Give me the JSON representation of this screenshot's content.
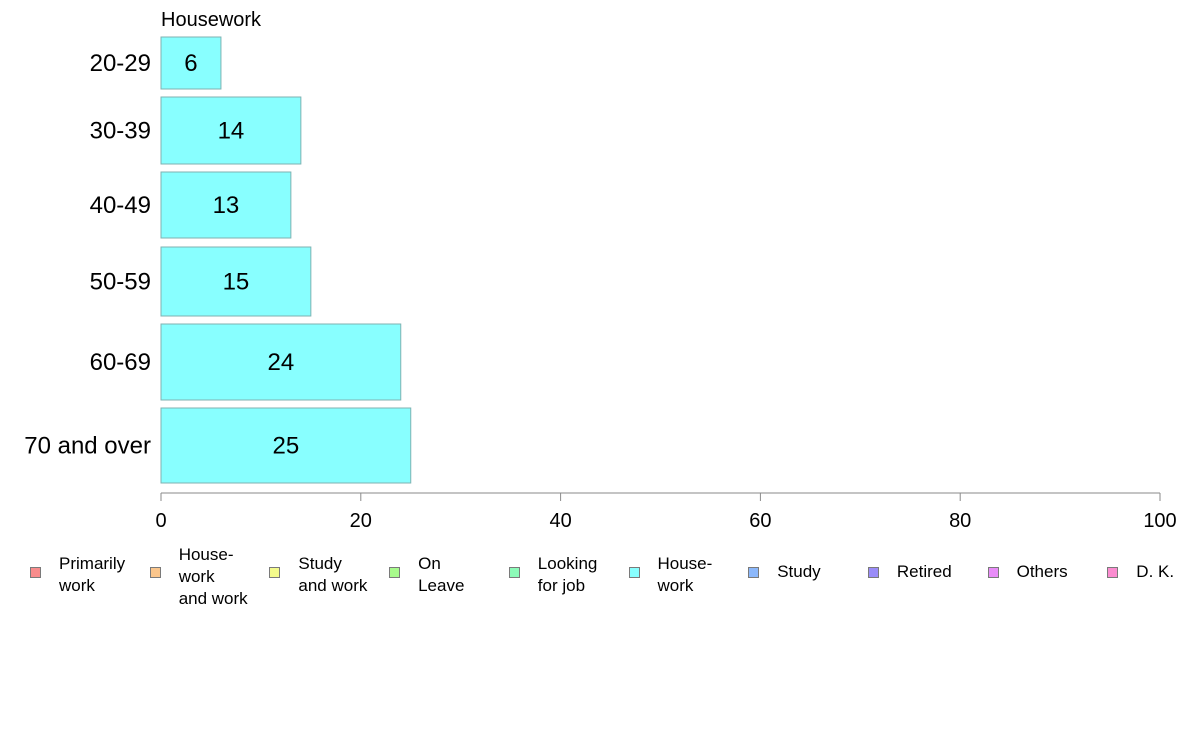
{
  "chart_data": {
    "type": "bar",
    "orientation": "horizontal",
    "title": "Housework",
    "categories": [
      "20-29",
      "30-39",
      "40-49",
      "50-59",
      "60-69",
      "70 and over"
    ],
    "values": [
      6,
      14,
      13,
      15,
      24,
      25
    ],
    "series_color": "#88ffff",
    "xlim": [
      0,
      100
    ],
    "xticks": [
      0,
      20,
      40,
      60,
      80,
      100
    ],
    "grid": false,
    "legend_position": "bottom",
    "legend": [
      {
        "label": "Primarily\nwork",
        "color": "#f88c8c"
      },
      {
        "label": "House-\nwork\nand work",
        "color": "#fbc68c"
      },
      {
        "label": "Study\nand work",
        "color": "#f4fb8c"
      },
      {
        "label": "On\nLeave",
        "color": "#a8fb8c"
      },
      {
        "label": "Looking\nfor job",
        "color": "#8cfbb8"
      },
      {
        "label": "House-\nwork",
        "color": "#88ffff"
      },
      {
        "label": "Study",
        "color": "#8cb8fb"
      },
      {
        "label": "Retired",
        "color": "#9a8cf8"
      },
      {
        "label": "Others",
        "color": "#e88cf8"
      },
      {
        "label": "D. K.",
        "color": "#fb8cd0"
      }
    ]
  }
}
